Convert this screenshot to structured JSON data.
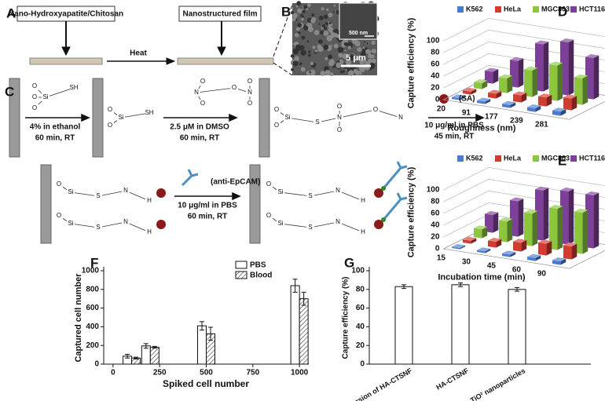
{
  "panel_labels": [
    "A",
    "B",
    "C",
    "D",
    "E",
    "F",
    "G"
  ],
  "panel_a": {
    "start": "Nano-Hydroxyapatite/Chitosan",
    "step": "Heat",
    "end": "Nanostructured film"
  },
  "panel_b": {
    "inset_scale": "500 nm",
    "scale": "5 μm"
  },
  "panel_c": {
    "steps": [
      [
        "4% in ethanol",
        "60 min, RT"
      ],
      [
        "2.5 μM in DMSO",
        "60 min, RT"
      ],
      [
        "(SA)",
        "10 μg/ml in PBS",
        "45 min, RT"
      ],
      [
        "(anti-EpCAM)",
        "10 μg/ml in PBS",
        "60 min, RT"
      ]
    ],
    "atoms": [
      "O",
      "O",
      "O",
      "Si",
      "SH",
      "O",
      "Si",
      "O",
      "SH",
      "N",
      "O",
      "O",
      "O",
      "N",
      "O",
      "O",
      "O",
      "Si",
      "O",
      "S",
      "N",
      "O",
      "O",
      "O",
      "N",
      "O",
      "Si",
      "S",
      "N",
      "H",
      "O",
      "Si",
      "S",
      "N",
      "H",
      "O",
      "Si",
      "S",
      "N",
      "H",
      "O",
      "Si",
      "S",
      "N",
      "H"
    ]
  },
  "chart_data": [
    {
      "type": "bar3d",
      "y_label": "Capture  efficiency (%)",
      "x_label": "Roughness (nm)",
      "categories": [
        "20",
        "91",
        "177",
        "239",
        "281"
      ],
      "series": [
        {
          "name": "K562",
          "color": "#4a7bd0",
          "values": [
            3,
            4,
            5,
            6,
            7
          ]
        },
        {
          "name": "HeLa",
          "color": "#d23b2f",
          "values": [
            5,
            8,
            12,
            15,
            20
          ]
        },
        {
          "name": "MGC803",
          "color": "#8cc63f",
          "values": [
            10,
            25,
            45,
            60,
            45
          ]
        },
        {
          "name": "HCT116",
          "color": "#7e3f98",
          "values": [
            20,
            45,
            80,
            90,
            70
          ]
        }
      ],
      "ylim": [
        0,
        100
      ],
      "yticks": [
        0,
        20,
        40,
        60,
        80,
        100
      ],
      "legend": "top"
    },
    {
      "type": "bar3d",
      "y_label": "Capture  efficiency (%)",
      "x_label": "Incubation time (min)",
      "categories": [
        "15",
        "30",
        "45",
        "60",
        "90"
      ],
      "series": [
        {
          "name": "K562",
          "color": "#4a7bd0",
          "values": [
            2,
            3,
            4,
            5,
            6
          ]
        },
        {
          "name": "HeLa",
          "color": "#d23b2f",
          "values": [
            5,
            10,
            15,
            20,
            22
          ]
        },
        {
          "name": "MGC803",
          "color": "#8cc63f",
          "values": [
            15,
            35,
            55,
            70,
            70
          ]
        },
        {
          "name": "HCT116",
          "color": "#7e3f98",
          "values": [
            30,
            60,
            85,
            90,
            90
          ]
        }
      ],
      "ylim": [
        0,
        100
      ],
      "yticks": [
        0,
        20,
        40,
        60,
        80,
        100
      ],
      "legend": "top"
    },
    {
      "type": "grouped_bar",
      "y_label": "Captured cell number",
      "x_label": "Spiked cell number",
      "x": [
        100,
        200,
        500,
        1000
      ],
      "series": [
        {
          "name": "PBS",
          "color": "#ffffff",
          "values": [
            85,
            195,
            410,
            840
          ],
          "errors": [
            20,
            25,
            45,
            70
          ]
        },
        {
          "name": "Blood",
          "color": "hatch",
          "values": [
            65,
            180,
            325,
            700
          ],
          "errors": [
            10,
            10,
            70,
            70
          ]
        }
      ],
      "xlim": [
        -50,
        1050
      ],
      "xticks": [
        0,
        250,
        500,
        750,
        1000
      ],
      "ylim": [
        0,
        1000
      ],
      "yticks": [
        0,
        200,
        400,
        600,
        800,
        1000
      ],
      "legend": "top-right"
    },
    {
      "type": "bar",
      "y_label": "Capture efficiency (%)",
      "categories": [
        "New version of HA-CTSNF",
        "HA-CTSNF",
        "TiO² nanoparticles"
      ],
      "values": [
        83,
        85,
        80
      ],
      "errors": [
        2,
        2,
        2
      ],
      "color": "#ffffff",
      "ylim": [
        0,
        100
      ],
      "yticks": [
        0,
        20,
        40,
        60,
        80,
        100
      ]
    }
  ]
}
